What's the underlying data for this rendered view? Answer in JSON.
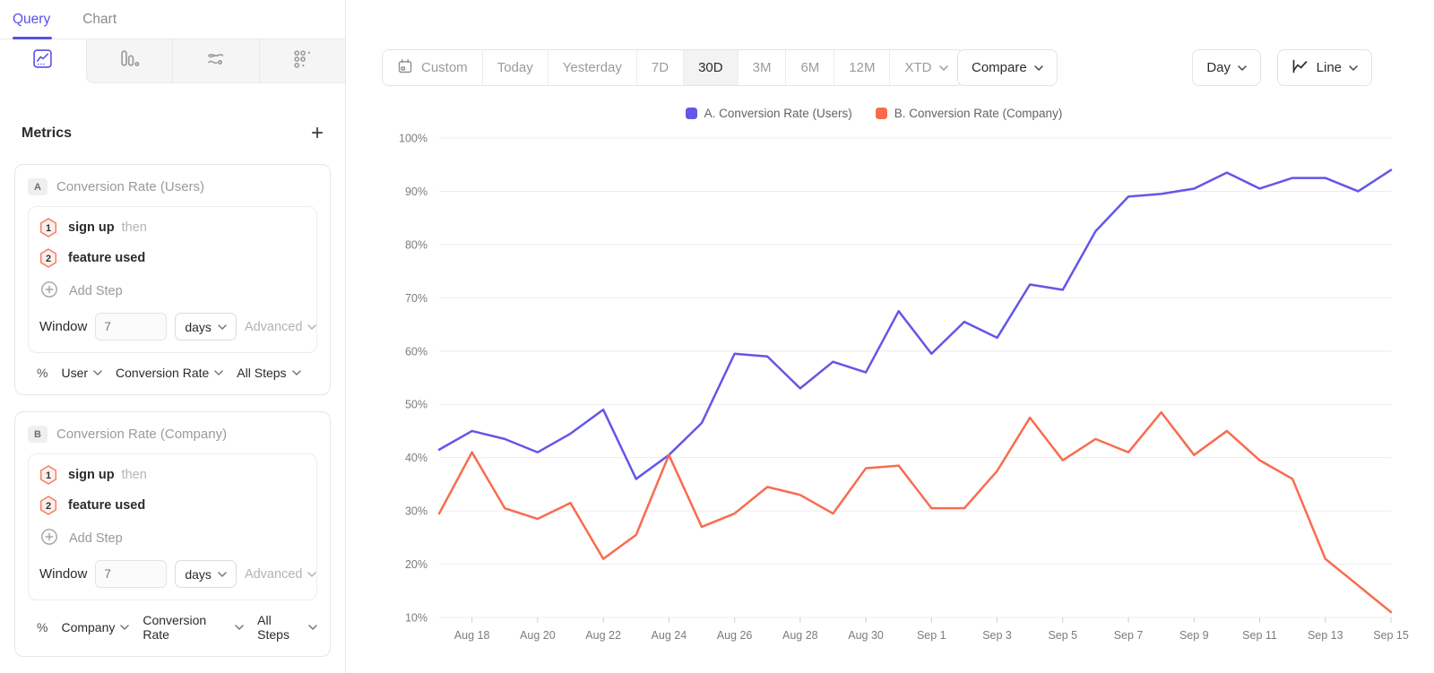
{
  "sidebar": {
    "tabs": [
      {
        "label": "Query"
      },
      {
        "label": "Chart"
      }
    ],
    "view_tabs": [
      {
        "name": "line-chart-view",
        "active": true
      },
      {
        "name": "bar-chart-view",
        "active": false
      },
      {
        "name": "flow-view",
        "active": false
      },
      {
        "name": "retention-view",
        "active": false
      }
    ],
    "metrics": {
      "heading": "Metrics",
      "add_label": "+",
      "cards": [
        {
          "badge": "A",
          "title": "Conversion Rate (Users)",
          "steps": [
            {
              "num": "1",
              "event": "sign up",
              "suffix": "then"
            },
            {
              "num": "2",
              "event": "feature used",
              "suffix": ""
            }
          ],
          "add_step_label": "Add Step",
          "window_label": "Window",
          "window_value": "7",
          "window_unit": "days",
          "advanced_label": "Advanced",
          "measure_prefix": "%",
          "measure_entity": "User",
          "measure_type": "Conversion Rate",
          "measure_scope": "All Steps"
        },
        {
          "badge": "B",
          "title": "Conversion Rate (Company)",
          "steps": [
            {
              "num": "1",
              "event": "sign up",
              "suffix": "then"
            },
            {
              "num": "2",
              "event": "feature used",
              "suffix": ""
            }
          ],
          "add_step_label": "Add Step",
          "window_label": "Window",
          "window_value": "7",
          "window_unit": "days",
          "advanced_label": "Advanced",
          "measure_prefix": "%",
          "measure_entity": "Company",
          "measure_type": "Conversion Rate",
          "measure_scope": "All Steps"
        }
      ]
    }
  },
  "toolbar": {
    "date_ranges": [
      {
        "label": "Custom"
      },
      {
        "label": "Today"
      },
      {
        "label": "Yesterday"
      },
      {
        "label": "7D"
      },
      {
        "label": "30D"
      },
      {
        "label": "3M"
      },
      {
        "label": "6M"
      },
      {
        "label": "12M"
      },
      {
        "label": "XTD"
      }
    ],
    "active_range": "30D",
    "compare_label": "Compare",
    "granularity_label": "Day",
    "chart_type_label": "Line"
  },
  "legend": [
    {
      "label": "A. Conversion Rate (Users)",
      "color": "#6456e8"
    },
    {
      "label": "B. Conversion Rate (Company)",
      "color": "#f96b4f"
    }
  ],
  "chart_data": {
    "type": "line",
    "title": "",
    "xlabel": "",
    "ylabel": "",
    "ylabel_format": "percent",
    "ylim": [
      10,
      100
    ],
    "yticks": [
      10,
      20,
      30,
      40,
      50,
      60,
      70,
      80,
      90,
      100
    ],
    "grid": "horizontal",
    "legend_position": "top-center",
    "xtick_start": 1,
    "xtick_every": 2,
    "x": [
      "Aug 17",
      "Aug 18",
      "Aug 19",
      "Aug 20",
      "Aug 21",
      "Aug 22",
      "Aug 23",
      "Aug 24",
      "Aug 25",
      "Aug 26",
      "Aug 27",
      "Aug 28",
      "Aug 29",
      "Aug 30",
      "Aug 31",
      "Sep 1",
      "Sep 2",
      "Sep 3",
      "Sep 4",
      "Sep 5",
      "Sep 6",
      "Sep 7",
      "Sep 8",
      "Sep 9",
      "Sep 10",
      "Sep 11",
      "Sep 12",
      "Sep 13",
      "Sep 14",
      "Sep 15"
    ],
    "series": [
      {
        "name": "A. Conversion Rate (Users)",
        "color": "#6456e8",
        "values": [
          41.5,
          45,
          43.5,
          41,
          44.5,
          49,
          36,
          40.5,
          46.5,
          59.5,
          59,
          53,
          58,
          56,
          67.5,
          59.5,
          65.5,
          62.5,
          72.5,
          71.5,
          82.5,
          89,
          89.5,
          90.5,
          93.5,
          90.5,
          92.5,
          92.5,
          90,
          94
        ]
      },
      {
        "name": "B. Conversion Rate (Company)",
        "color": "#f96b4f",
        "values": [
          29.5,
          41,
          30.5,
          28.5,
          31.5,
          21,
          25.5,
          40.5,
          27,
          29.5,
          34.5,
          33,
          29.5,
          38,
          38.5,
          30.5,
          30.5,
          37.5,
          47.5,
          39.5,
          43.5,
          41,
          48.5,
          40.5,
          45,
          39.5,
          36,
          21,
          16,
          11
        ]
      }
    ]
  }
}
